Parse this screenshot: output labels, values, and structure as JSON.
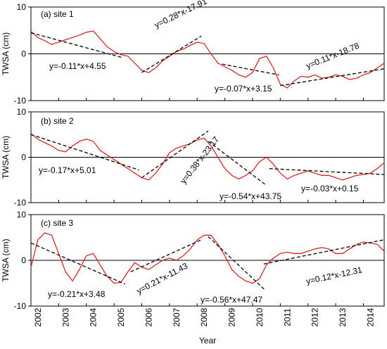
{
  "chart_data": [
    {
      "type": "line",
      "title": "(a)  site 1",
      "xlabel": "",
      "ylabel": "TWSA (cm)",
      "xlim": [
        2002,
        2014.75
      ],
      "ylim": [
        -10,
        10
      ],
      "yticks": [
        10,
        0,
        -10
      ],
      "series": [
        {
          "color": "#d62728",
          "x": [
            2002.0,
            2002.25,
            2002.5,
            2002.75,
            2003.0,
            2003.25,
            2003.5,
            2003.75,
            2004.0,
            2004.25,
            2004.5,
            2004.75,
            2005.0,
            2005.25,
            2005.5,
            2005.75,
            2006.0,
            2006.25,
            2006.5,
            2006.75,
            2007.0,
            2007.25,
            2007.5,
            2007.75,
            2008.0,
            2008.25,
            2008.5,
            2008.75,
            2009.0,
            2009.25,
            2009.5,
            2009.75,
            2010.0,
            2010.25,
            2010.5,
            2010.75,
            2011.0,
            2011.25,
            2011.5,
            2011.75,
            2012.0,
            2012.25,
            2012.5,
            2012.75,
            2013.0,
            2013.25,
            2013.5,
            2013.75,
            2014.0,
            2014.25,
            2014.5,
            2014.75
          ],
          "y": [
            4.8,
            3.5,
            2.8,
            2.0,
            2.5,
            3.0,
            3.5,
            4.0,
            4.6,
            4.9,
            3.2,
            1.5,
            0.5,
            -0.2,
            -0.5,
            -2.0,
            -3.5,
            -4.0,
            -3.0,
            -1.5,
            -0.5,
            0.5,
            1.0,
            1.8,
            2.5,
            2.2,
            0.0,
            -2.0,
            -2.8,
            -3.5,
            -4.5,
            -5.0,
            -4.0,
            -1.0,
            -0.5,
            -3.0,
            -6.5,
            -7.3,
            -5.8,
            -4.8,
            -5.0,
            -4.5,
            -5.2,
            -5.0,
            -4.5,
            -4.8,
            -5.5,
            -5.2,
            -4.5,
            -4.0,
            -3.0,
            -2.0
          ]
        }
      ],
      "trends": [
        {
          "label": "y=-0.11*x+4.55",
          "x0": 2002.0,
          "y0": 4.5,
          "x1": 2005.3,
          "y1": -0.8
        },
        {
          "label": "y=0.28*x-17.91",
          "x0": 2006.0,
          "y0": -4.0,
          "x1": 2008.15,
          "y1": 3.8
        },
        {
          "label": "y=-0.07*x+3.15",
          "x0": 2008.9,
          "y0": -2.2,
          "x1": 2010.95,
          "y1": -4.5
        },
        {
          "label": "y=0.11*x-18.78",
          "x0": 2011.0,
          "y0": -6.8,
          "x1": 2014.75,
          "y1": -3.2
        }
      ]
    },
    {
      "type": "line",
      "title": "(b)  site 2",
      "xlabel": "",
      "ylabel": "TWSA (cm)",
      "xlim": [
        2002,
        2014.75
      ],
      "ylim": [
        -10,
        10
      ],
      "yticks": [
        10,
        0,
        -10
      ],
      "series": [
        {
          "color": "#d62728",
          "x": [
            2002.0,
            2002.25,
            2002.5,
            2002.75,
            2003.0,
            2003.25,
            2003.5,
            2003.75,
            2004.0,
            2004.25,
            2004.5,
            2004.75,
            2005.0,
            2005.25,
            2005.5,
            2005.75,
            2006.0,
            2006.25,
            2006.5,
            2006.75,
            2007.0,
            2007.25,
            2007.5,
            2007.75,
            2008.0,
            2008.25,
            2008.5,
            2008.75,
            2009.0,
            2009.25,
            2009.5,
            2009.75,
            2010.0,
            2010.25,
            2010.5,
            2010.75,
            2011.0,
            2011.25,
            2011.5,
            2011.75,
            2012.0,
            2012.25,
            2012.5,
            2012.75,
            2013.0,
            2013.25,
            2013.5,
            2013.75,
            2014.0,
            2014.25,
            2014.5,
            2014.75
          ],
          "y": [
            5.2,
            4.0,
            3.2,
            2.5,
            1.5,
            1.2,
            2.5,
            3.5,
            4.0,
            3.5,
            1.5,
            0.5,
            -0.5,
            -1.5,
            -2.5,
            -3.5,
            -4.5,
            -5.0,
            -3.5,
            -1.5,
            1.0,
            2.0,
            2.5,
            3.0,
            3.8,
            4.2,
            2.5,
            0.0,
            -2.5,
            -4.0,
            -4.8,
            -4.0,
            -3.0,
            -1.0,
            0.0,
            -1.5,
            -3.5,
            -4.8,
            -4.0,
            -3.5,
            -3.0,
            -3.5,
            -4.0,
            -4.0,
            -4.5,
            -5.0,
            -4.5,
            -4.0,
            -3.8,
            -3.5,
            -2.5,
            -1.2
          ]
        }
      ],
      "trends": [
        {
          "label": "y=-0.17*x+5.01",
          "x0": 2002.0,
          "y0": 5.0,
          "x1": 2005.9,
          "y1": -2.8
        },
        {
          "label": "y=0.38*x-23.17",
          "x0": 2006.0,
          "y0": -4.5,
          "x1": 2008.4,
          "y1": 5.8
        },
        {
          "label": "y=-0.54*x+43.75",
          "x0": 2008.4,
          "y0": 3.5,
          "x1": 2010.5,
          "y1": -6.2
        },
        {
          "label": "y=-0.03*x+0.15",
          "x0": 2010.6,
          "y0": -2.5,
          "x1": 2014.75,
          "y1": -3.8
        }
      ]
    },
    {
      "type": "line",
      "title": "(c)  site 3",
      "xlabel": "Year",
      "ylabel": "TWSA (cm)",
      "xlim": [
        2002,
        2014.75
      ],
      "ylim": [
        -10,
        10
      ],
      "yticks": [
        10,
        0,
        -10
      ],
      "xticks": [
        "2002",
        "2003",
        "2004",
        "2005",
        "2006",
        "2007",
        "2008",
        "2009",
        "2010",
        "2011",
        "2012",
        "2013",
        "2014"
      ],
      "series": [
        {
          "color": "#d62728",
          "x": [
            2002.0,
            2002.25,
            2002.5,
            2002.75,
            2003.0,
            2003.25,
            2003.5,
            2003.75,
            2004.0,
            2004.25,
            2004.5,
            2004.75,
            2005.0,
            2005.25,
            2005.5,
            2005.75,
            2006.0,
            2006.25,
            2006.5,
            2006.75,
            2007.0,
            2007.25,
            2007.5,
            2007.75,
            2008.0,
            2008.25,
            2008.5,
            2008.75,
            2009.0,
            2009.25,
            2009.5,
            2009.75,
            2010.0,
            2010.25,
            2010.5,
            2010.75,
            2011.0,
            2011.25,
            2011.5,
            2011.75,
            2012.0,
            2012.25,
            2012.5,
            2012.75,
            2013.0,
            2013.25,
            2013.5,
            2013.75,
            2014.0,
            2014.25,
            2014.5,
            2014.75
          ],
          "y": [
            -1.5,
            4.5,
            6.0,
            5.5,
            1.5,
            -2.5,
            -4.5,
            -2.0,
            1.0,
            1.5,
            -1.0,
            -3.5,
            -5.0,
            -4.8,
            -2.5,
            -0.5,
            -1.5,
            -2.0,
            -1.0,
            0.0,
            0.5,
            0.0,
            1.0,
            2.5,
            4.5,
            5.5,
            5.5,
            3.5,
            1.0,
            -2.0,
            -3.5,
            -4.5,
            -5.0,
            -4.0,
            -1.0,
            0.5,
            1.5,
            1.8,
            1.5,
            1.5,
            2.0,
            2.5,
            2.8,
            2.5,
            1.5,
            1.5,
            2.5,
            3.5,
            4.0,
            3.8,
            3.5,
            2.0
          ]
        }
      ],
      "trends": [
        {
          "label": "y=-0.21*x+3.48",
          "x0": 2002.0,
          "y0": 3.8,
          "x1": 2005.4,
          "y1": -5.2
        },
        {
          "label": "y=0.21*x-11.43",
          "x0": 2005.6,
          "y0": -2.5,
          "x1": 2008.15,
          "y1": 4.5
        },
        {
          "label": "y=-0.56*x+47.47",
          "x0": 2008.4,
          "y0": 5.2,
          "x1": 2010.45,
          "y1": -6.5
        },
        {
          "label": "y=0.12*x-12.31",
          "x0": 2010.4,
          "y0": -0.8,
          "x1": 2014.75,
          "y1": 4.5
        }
      ]
    }
  ]
}
